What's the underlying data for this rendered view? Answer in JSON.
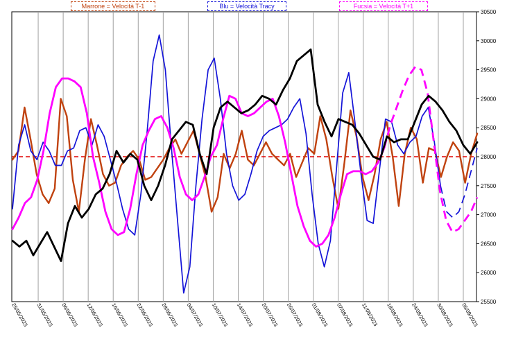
{
  "chart_data": {
    "type": "line",
    "legend": [
      {
        "label": "Marrone = Velocità T-1",
        "color": "#c0420f"
      },
      {
        "label": "Blu = Velocità Tracy",
        "color": "#1414d8"
      },
      {
        "label": "Fucsia = Velocità T+1",
        "color": "#ff00ff"
      }
    ],
    "ylim": [
      25500,
      30500
    ],
    "y_ticks": [
      "25500",
      "26000",
      "26500",
      "27000",
      "27500",
      "28000",
      "28500",
      "29000",
      "29500",
      "30000",
      "30500"
    ],
    "x_ticks": [
      "25/05/2023",
      "31/05/2023",
      "06/06/2023",
      "12/06/2023",
      "16/06/2023",
      "22/06/2023",
      "28/06/2023",
      "04/07/2023",
      "10/07/2023",
      "14/07/2023",
      "20/07/2023",
      "26/07/2023",
      "01/08/2023",
      "07/08/2023",
      "11/08/2023",
      "18/08/2023",
      "24/08/2023",
      "30/08/2023",
      "05/09/2023"
    ],
    "reference_line": {
      "value": 28000,
      "color": "#e00000",
      "style": "dashed"
    },
    "series": [
      {
        "name": "Marrone = Velocità T-1",
        "color": "#c0420f",
        "values": [
          27950,
          28100,
          28850,
          28300,
          27700,
          27350,
          27200,
          27450,
          29000,
          28700,
          27600,
          27050,
          27950,
          28650,
          28200,
          27700,
          27500,
          27550,
          27850,
          28000,
          28100,
          27950,
          27600,
          27650,
          27800,
          27950,
          28150,
          28300,
          28050,
          28250,
          28450,
          28050,
          27650,
          27050,
          27300,
          28050,
          27800,
          28050,
          28450,
          27950,
          27850,
          28050,
          28250,
          28050,
          27950,
          27850,
          28050,
          27650,
          27900,
          28150,
          28050,
          28700,
          28300,
          27650,
          27100,
          27900,
          28800,
          28350,
          27650,
          27250,
          27700,
          28300,
          28600,
          28000,
          27150,
          28050,
          28500,
          28300,
          27550,
          28150,
          28100,
          27650,
          28000,
          28250,
          28100,
          27550,
          28050,
          28400
        ],
        "style": "solid"
      },
      {
        "name": "Blu = Velocità Tracy",
        "color": "#1414d8",
        "values": [
          27100,
          28200,
          28550,
          28100,
          27950,
          28250,
          28100,
          27850,
          27850,
          28100,
          28150,
          28450,
          28500,
          28200,
          28550,
          28350,
          27950,
          27550,
          27100,
          26750,
          26650,
          27350,
          28400,
          29650,
          30100,
          29500,
          28150,
          26900,
          25650,
          26100,
          27500,
          28650,
          29500,
          29700,
          29000,
          28050,
          27500,
          27250,
          27350,
          27700,
          28100,
          28350,
          28450,
          28500,
          28550,
          28650,
          28850,
          29000,
          28400,
          27350,
          26500,
          26100,
          26550,
          27800,
          29100,
          29450,
          28600,
          27700,
          26900,
          26850,
          27750,
          28650,
          28600,
          28200,
          28050,
          28250,
          28350,
          28700,
          28850,
          28250,
          27500,
          27050,
          26950,
          27050,
          27350,
          27750,
          28150
        ],
        "style": "solid",
        "dashed_from_index": 70
      },
      {
        "name": "Fucsia = Velocità T+1",
        "color": "#ff00ff",
        "values": [
          26750,
          26950,
          27200,
          27300,
          27600,
          28100,
          28750,
          29200,
          29350,
          29350,
          29300,
          29200,
          28750,
          28000,
          27550,
          27050,
          26750,
          26650,
          26700,
          27100,
          27700,
          28200,
          28450,
          28650,
          28700,
          28500,
          28150,
          27650,
          27350,
          27250,
          27350,
          27650,
          28000,
          28200,
          28650,
          29050,
          29000,
          28750,
          28700,
          28750,
          28850,
          28950,
          29000,
          28700,
          28250,
          27700,
          27150,
          26800,
          26550,
          26450,
          26500,
          26650,
          26950,
          27350,
          27700,
          27750,
          27750,
          27700,
          27750,
          27900,
          28150,
          28550,
          28850,
          29150,
          29400,
          29550,
          29500,
          29100,
          28250,
          27400,
          26900,
          26700,
          26750,
          26900,
          27050,
          27300
        ],
        "style": "solid",
        "dashed_from_index": 60
      },
      {
        "name": "",
        "color": "#000000",
        "values": [
          26550,
          26450,
          26550,
          26300,
          26500,
          26700,
          26450,
          26200,
          26850,
          27150,
          26950,
          27100,
          27350,
          27450,
          27700,
          28100,
          27900,
          28050,
          27950,
          27500,
          27250,
          27500,
          27850,
          28300,
          28450,
          28600,
          28550,
          28050,
          27700,
          28500,
          28850,
          28950,
          28850,
          28750,
          28800,
          28900,
          29050,
          29000,
          28900,
          29150,
          29350,
          29650,
          29750,
          29850,
          28900,
          28600,
          28350,
          28650,
          28600,
          28550,
          28400,
          28200,
          28000,
          27950,
          28350,
          28250,
          28300,
          28300,
          28600,
          28900,
          29050,
          28950,
          28800,
          28600,
          28450,
          28200,
          28050,
          28250
        ],
        "style": "solid"
      }
    ]
  }
}
